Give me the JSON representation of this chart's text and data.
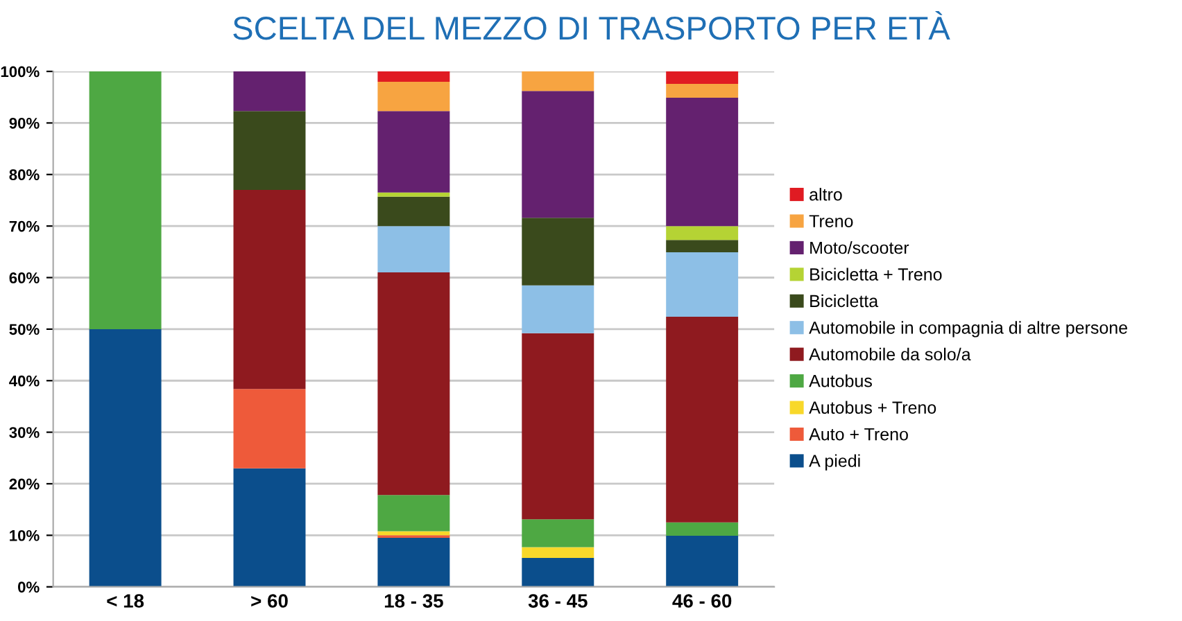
{
  "chart_data": {
    "type": "bar",
    "stacked": true,
    "title": "SCELTA DEL MEZZO DI TRASPORTO PER ETÀ",
    "categories": [
      "< 18",
      "> 60",
      "18 - 35",
      "36 - 45",
      "46 - 60"
    ],
    "series": [
      {
        "name": "A piedi",
        "color": "#0b4e8c",
        "values": [
          50,
          23.0,
          9.5,
          5.6,
          9.9
        ]
      },
      {
        "name": "Auto + Treno",
        "color": "#ee5a3a",
        "values": [
          0,
          15.4,
          0.5,
          0,
          0
        ]
      },
      {
        "name": "Autobus + Treno",
        "color": "#f8d82a",
        "values": [
          0,
          0,
          0.8,
          2.1,
          0
        ]
      },
      {
        "name": "Autobus",
        "color": "#4ea843",
        "values": [
          50,
          0,
          7.0,
          5.4,
          2.6
        ]
      },
      {
        "name": "Automobile da solo/a",
        "color": "#8f1a1f",
        "values": [
          0,
          38.6,
          43.2,
          36.1,
          39.9
        ]
      },
      {
        "name": "Automobile in compagnia di altre persone",
        "color": "#8dbfe6",
        "values": [
          0,
          0,
          9.0,
          9.3,
          12.5
        ]
      },
      {
        "name": "Bicicletta",
        "color": "#3a4a1c",
        "values": [
          0,
          15.3,
          5.7,
          13.1,
          2.4
        ]
      },
      {
        "name": "Bicicletta + Treno",
        "color": "#b5d334",
        "values": [
          0,
          0,
          0.8,
          0,
          2.7
        ]
      },
      {
        "name": "Moto/scooter",
        "color": "#64216f",
        "values": [
          0,
          7.7,
          15.8,
          24.6,
          24.9
        ]
      },
      {
        "name": "Treno",
        "color": "#f7a441",
        "values": [
          0,
          0,
          5.7,
          3.8,
          2.7
        ]
      },
      {
        "name": "altro",
        "color": "#e01b22",
        "values": [
          0,
          0,
          2.0,
          0,
          2.4
        ]
      }
    ],
    "ylim": [
      0,
      100
    ],
    "yticks": [
      {
        "value": 0,
        "label": "0%"
      },
      {
        "value": 10,
        "label": "10%"
      },
      {
        "value": 20,
        "label": "20%"
      },
      {
        "value": 30,
        "label": "30%"
      },
      {
        "value": 40,
        "label": "40%"
      },
      {
        "value": 50,
        "label": "50%"
      },
      {
        "value": 60,
        "label": "60%"
      },
      {
        "value": 70,
        "label": "70%"
      },
      {
        "value": 80,
        "label": "80%"
      },
      {
        "value": 90,
        "label": "90%"
      },
      {
        "value": 100,
        "label": "100%"
      }
    ],
    "grid": "y",
    "legend": "right"
  }
}
